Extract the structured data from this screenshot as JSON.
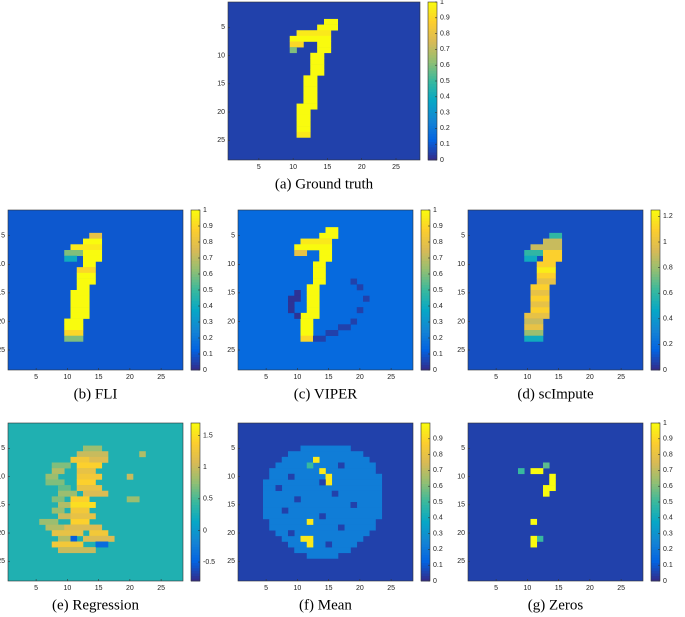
{
  "chart_data": [
    {
      "type": "heatmap",
      "caption": "(a) Ground truth",
      "xlim": [
        0.5,
        28.5
      ],
      "ylim": [
        0.5,
        28.5
      ],
      "xticks": [
        5,
        10,
        15,
        20,
        25
      ],
      "yticks": [
        5,
        10,
        15,
        20,
        25
      ],
      "clim": [
        0,
        1
      ],
      "cticks": [
        0,
        0.1,
        0.2,
        0.3,
        0.4,
        0.5,
        0.6,
        0.7,
        0.8,
        0.9,
        1
      ],
      "background": 0.05,
      "runs": [
        [
          4,
          15,
          16,
          1
        ],
        [
          5,
          14,
          16,
          1
        ],
        [
          6,
          11,
          15,
          0.95
        ],
        [
          7,
          10,
          15,
          1
        ],
        [
          8,
          10,
          11,
          0.9
        ],
        [
          8,
          14,
          15,
          1
        ],
        [
          9,
          10,
          10,
          0.6
        ],
        [
          9,
          14,
          15,
          1
        ],
        [
          10,
          13,
          14,
          1
        ],
        [
          11,
          13,
          14,
          1
        ],
        [
          12,
          13,
          14,
          1
        ],
        [
          13,
          13,
          14,
          1
        ],
        [
          14,
          12,
          13,
          1
        ],
        [
          15,
          12,
          13,
          1
        ],
        [
          16,
          12,
          13,
          1
        ],
        [
          17,
          12,
          13,
          1
        ],
        [
          18,
          12,
          13,
          1
        ],
        [
          19,
          11,
          13,
          1
        ],
        [
          20,
          11,
          12,
          1
        ],
        [
          21,
          11,
          12,
          1
        ],
        [
          22,
          11,
          12,
          1
        ],
        [
          23,
          11,
          12,
          1
        ],
        [
          24,
          11,
          12,
          0.95
        ]
      ]
    },
    {
      "type": "heatmap",
      "caption": "(b) FLI",
      "xlim": [
        0.5,
        28.5
      ],
      "ylim": [
        0.5,
        28.5
      ],
      "xticks": [
        5,
        10,
        15,
        20,
        25
      ],
      "yticks": [
        5,
        10,
        15,
        20,
        25
      ],
      "clim": [
        0,
        1
      ],
      "cticks": [
        0,
        0.1,
        0.2,
        0.3,
        0.4,
        0.5,
        0.6,
        0.7,
        0.8,
        0.9,
        1
      ],
      "background": 0.1,
      "runs": [
        [
          5,
          14,
          15,
          0.8
        ],
        [
          6,
          13,
          15,
          1
        ],
        [
          7,
          11,
          15,
          0.95
        ],
        [
          8,
          10,
          12,
          0.6
        ],
        [
          8,
          13,
          15,
          1
        ],
        [
          9,
          10,
          11,
          0.4
        ],
        [
          9,
          13,
          15,
          1
        ],
        [
          10,
          13,
          14,
          1
        ],
        [
          11,
          12,
          14,
          0.9
        ],
        [
          12,
          12,
          14,
          1
        ],
        [
          13,
          12,
          14,
          1
        ],
        [
          14,
          12,
          13,
          1
        ],
        [
          15,
          11,
          13,
          1
        ],
        [
          16,
          11,
          13,
          1
        ],
        [
          17,
          11,
          13,
          1
        ],
        [
          18,
          11,
          13,
          1
        ],
        [
          19,
          11,
          13,
          1
        ],
        [
          20,
          10,
          12,
          1
        ],
        [
          21,
          10,
          12,
          1
        ],
        [
          22,
          10,
          12,
          0.9
        ],
        [
          23,
          10,
          12,
          0.6
        ]
      ]
    },
    {
      "type": "heatmap",
      "caption": "(c) VIPER",
      "xlim": [
        0.5,
        28.5
      ],
      "ylim": [
        0.5,
        28.5
      ],
      "xticks": [
        5,
        10,
        15,
        20,
        25
      ],
      "yticks": [
        5,
        10,
        15,
        20,
        25
      ],
      "clim": [
        0,
        1
      ],
      "cticks": [
        0,
        0.1,
        0.2,
        0.3,
        0.4,
        0.5,
        0.6,
        0.7,
        0.8,
        0.9,
        1
      ],
      "background": 0.15,
      "runs": [
        [
          4,
          15,
          16,
          1
        ],
        [
          5,
          14,
          16,
          1
        ],
        [
          6,
          11,
          15,
          0.95
        ],
        [
          7,
          10,
          15,
          1
        ],
        [
          8,
          10,
          11,
          0.8
        ],
        [
          8,
          14,
          15,
          1
        ],
        [
          9,
          14,
          15,
          1
        ],
        [
          10,
          13,
          14,
          1
        ],
        [
          11,
          13,
          14,
          1
        ],
        [
          12,
          13,
          14,
          1
        ],
        [
          13,
          13,
          14,
          1
        ],
        [
          14,
          12,
          13,
          1
        ],
        [
          15,
          12,
          13,
          1
        ],
        [
          16,
          12,
          13,
          1
        ],
        [
          17,
          12,
          13,
          1
        ],
        [
          18,
          12,
          13,
          1
        ],
        [
          19,
          11,
          13,
          1
        ],
        [
          20,
          11,
          12,
          1
        ],
        [
          21,
          11,
          12,
          1
        ],
        [
          22,
          11,
          12,
          1
        ],
        [
          23,
          11,
          12,
          0.9
        ],
        [
          13,
          19,
          19,
          0.05
        ],
        [
          14,
          20,
          20,
          0.05
        ],
        [
          16,
          21,
          21,
          0.05
        ],
        [
          18,
          20,
          20,
          0.05
        ],
        [
          20,
          19,
          19,
          0.05
        ],
        [
          21,
          17,
          18,
          0.05
        ],
        [
          22,
          15,
          16,
          0.05
        ],
        [
          23,
          13,
          14,
          0.05
        ],
        [
          15,
          10,
          10,
          0.02
        ],
        [
          16,
          9,
          10,
          0.02
        ],
        [
          17,
          9,
          9,
          0.02
        ],
        [
          18,
          9,
          9,
          0.02
        ],
        [
          19,
          10,
          10,
          0.02
        ]
      ]
    },
    {
      "type": "heatmap",
      "caption": "(d) scImpute",
      "xlim": [
        0.5,
        28.5
      ],
      "ylim": [
        0.5,
        28.5
      ],
      "xticks": [
        5,
        10,
        15,
        20,
        25
      ],
      "yticks": [
        5,
        10,
        15,
        20,
        25
      ],
      "clim": [
        0,
        1.25
      ],
      "cticks": [
        0,
        0.2,
        0.4,
        0.6,
        0.8,
        1,
        1.2
      ],
      "background": 0.1,
      "runs": [
        [
          5,
          14,
          15,
          0.6
        ],
        [
          6,
          13,
          15,
          0.9
        ],
        [
          7,
          11,
          15,
          0.9
        ],
        [
          8,
          10,
          12,
          0.6
        ],
        [
          8,
          13,
          15,
          1.1
        ],
        [
          9,
          10,
          11,
          0.5
        ],
        [
          9,
          13,
          15,
          1.1
        ],
        [
          10,
          12,
          14,
          1.1
        ],
        [
          11,
          12,
          14,
          1.2
        ],
        [
          12,
          12,
          14,
          1.1
        ],
        [
          13,
          12,
          14,
          1
        ],
        [
          14,
          11,
          13,
          1.1
        ],
        [
          15,
          11,
          13,
          1
        ],
        [
          16,
          11,
          13,
          1.1
        ],
        [
          17,
          11,
          13,
          1
        ],
        [
          18,
          11,
          13,
          1.1
        ],
        [
          19,
          10,
          13,
          1
        ],
        [
          20,
          10,
          12,
          0.9
        ],
        [
          21,
          10,
          12,
          1
        ],
        [
          22,
          10,
          12,
          0.8
        ],
        [
          23,
          10,
          12,
          0.5
        ]
      ]
    },
    {
      "type": "heatmap",
      "caption": "(e) Regression",
      "xlim": [
        0.5,
        28.5
      ],
      "ylim": [
        0.5,
        28.5
      ],
      "xticks": [
        5,
        10,
        15,
        20,
        25
      ],
      "yticks": [
        5,
        10,
        15,
        20,
        25
      ],
      "clim": [
        -0.8,
        1.7
      ],
      "cticks": [
        -0.5,
        0,
        0.5,
        1,
        1.5
      ],
      "background": 0.3,
      "runs": [
        [
          5,
          13,
          15,
          0.8
        ],
        [
          6,
          12,
          16,
          1
        ],
        [
          7,
          11,
          13,
          1.3
        ],
        [
          7,
          14,
          16,
          1.1
        ],
        [
          8,
          8,
          10,
          0.7
        ],
        [
          8,
          12,
          15,
          1.4
        ],
        [
          9,
          8,
          9,
          0.9
        ],
        [
          9,
          12,
          14,
          1.2
        ],
        [
          10,
          7,
          8,
          0.8
        ],
        [
          10,
          12,
          15,
          1.3
        ],
        [
          11,
          7,
          9,
          0.7
        ],
        [
          11,
          12,
          14,
          1.4
        ],
        [
          12,
          9,
          10,
          0.6
        ],
        [
          12,
          12,
          15,
          1.2
        ],
        [
          13,
          9,
          11,
          0.8
        ],
        [
          13,
          13,
          16,
          1.1
        ],
        [
          14,
          8,
          9,
          0.7
        ],
        [
          14,
          11,
          13,
          1.4
        ],
        [
          15,
          9,
          10,
          0.9
        ],
        [
          15,
          11,
          14,
          1.5
        ],
        [
          16,
          8,
          9,
          0.8
        ],
        [
          16,
          11,
          13,
          1.3
        ],
        [
          17,
          9,
          10,
          1
        ],
        [
          17,
          11,
          14,
          1.2
        ],
        [
          18,
          6,
          8,
          0.8
        ],
        [
          18,
          11,
          13,
          1.4
        ],
        [
          19,
          7,
          9,
          0.9
        ],
        [
          19,
          10,
          15,
          1.1
        ],
        [
          20,
          8,
          12,
          1.2
        ],
        [
          20,
          14,
          16,
          1.3
        ],
        [
          21,
          9,
          10,
          0.9
        ],
        [
          21,
          11,
          11,
          -0.5
        ],
        [
          21,
          13,
          17,
          1.1
        ],
        [
          22,
          8,
          12,
          1.3
        ],
        [
          22,
          15,
          16,
          -0.4
        ],
        [
          23,
          9,
          14,
          1
        ],
        [
          6,
          22,
          22,
          0.9
        ],
        [
          10,
          20,
          20,
          1
        ],
        [
          14,
          20,
          21,
          0.8
        ]
      ]
    },
    {
      "type": "heatmap",
      "caption": "(f) Mean",
      "xlim": [
        0.5,
        28.5
      ],
      "ylim": [
        0.5,
        28.5
      ],
      "xticks": [
        5,
        10,
        15,
        20,
        25
      ],
      "yticks": [
        5,
        10,
        15,
        20,
        25
      ],
      "clim": [
        0,
        1
      ],
      "cticks": [
        0,
        0.1,
        0.2,
        0.3,
        0.4,
        0.5,
        0.6,
        0.7,
        0.8,
        0.9
      ],
      "background": 0.05,
      "runs": [
        [
          5,
          11,
          18,
          0.22
        ],
        [
          6,
          9,
          20,
          0.22
        ],
        [
          7,
          8,
          21,
          0.22
        ],
        [
          8,
          7,
          22,
          0.22
        ],
        [
          9,
          6,
          22,
          0.22
        ],
        [
          10,
          6,
          23,
          0.22
        ],
        [
          11,
          5,
          23,
          0.22
        ],
        [
          12,
          5,
          23,
          0.22
        ],
        [
          13,
          5,
          23,
          0.22
        ],
        [
          14,
          5,
          23,
          0.22
        ],
        [
          15,
          5,
          23,
          0.22
        ],
        [
          16,
          5,
          23,
          0.22
        ],
        [
          17,
          5,
          23,
          0.22
        ],
        [
          18,
          6,
          22,
          0.22
        ],
        [
          19,
          6,
          22,
          0.22
        ],
        [
          20,
          7,
          21,
          0.22
        ],
        [
          21,
          8,
          20,
          0.22
        ],
        [
          22,
          9,
          19,
          0.22
        ],
        [
          23,
          10,
          18,
          0.22
        ],
        [
          24,
          12,
          16,
          0.22
        ],
        [
          7,
          13,
          13,
          0.95
        ],
        [
          8,
          12,
          12,
          0.5
        ],
        [
          9,
          14,
          14,
          0.95
        ],
        [
          10,
          15,
          15,
          0.95
        ],
        [
          11,
          15,
          15,
          0.95
        ],
        [
          18,
          12,
          12,
          0.95
        ],
        [
          21,
          11,
          12,
          0.95
        ],
        [
          22,
          12,
          12,
          0.95
        ],
        [
          8,
          17,
          17,
          0.05
        ],
        [
          10,
          9,
          9,
          0.05
        ],
        [
          11,
          14,
          14,
          0.05
        ],
        [
          12,
          7,
          7,
          0.05
        ],
        [
          13,
          16,
          16,
          0.05
        ],
        [
          14,
          10,
          10,
          0.05
        ],
        [
          15,
          19,
          19,
          0.05
        ],
        [
          16,
          8,
          8,
          0.05
        ],
        [
          17,
          14,
          14,
          0.05
        ],
        [
          19,
          17,
          17,
          0.05
        ],
        [
          20,
          9,
          9,
          0.05
        ],
        [
          22,
          15,
          15,
          0.05
        ]
      ]
    },
    {
      "type": "heatmap",
      "caption": "(g) Zeros",
      "xlim": [
        0.5,
        28.5
      ],
      "ylim": [
        0.5,
        28.5
      ],
      "xticks": [
        5,
        10,
        15,
        20,
        25
      ],
      "yticks": [
        5,
        10,
        15,
        20,
        25
      ],
      "clim": [
        0,
        1
      ],
      "cticks": [
        0,
        0.1,
        0.2,
        0.3,
        0.4,
        0.5,
        0.6,
        0.7,
        0.8,
        0.9,
        1
      ],
      "background": 0.05,
      "runs": [
        [
          8,
          13,
          13,
          0.55
        ],
        [
          9,
          9,
          9,
          0.5
        ],
        [
          9,
          11,
          12,
          1
        ],
        [
          10,
          14,
          14,
          1
        ],
        [
          11,
          14,
          14,
          1
        ],
        [
          12,
          13,
          14,
          1
        ],
        [
          13,
          13,
          13,
          1
        ],
        [
          18,
          11,
          11,
          1
        ],
        [
          21,
          12,
          12,
          0.5
        ],
        [
          21,
          11,
          11,
          1
        ],
        [
          22,
          11,
          11,
          1
        ]
      ]
    }
  ],
  "colormap": [
    "#352a87",
    "#0363e1",
    "#1485d4",
    "#06a7c6",
    "#38b99e",
    "#92bf73",
    "#d9ba56",
    "#fcce2e",
    "#f9fb0e"
  ]
}
